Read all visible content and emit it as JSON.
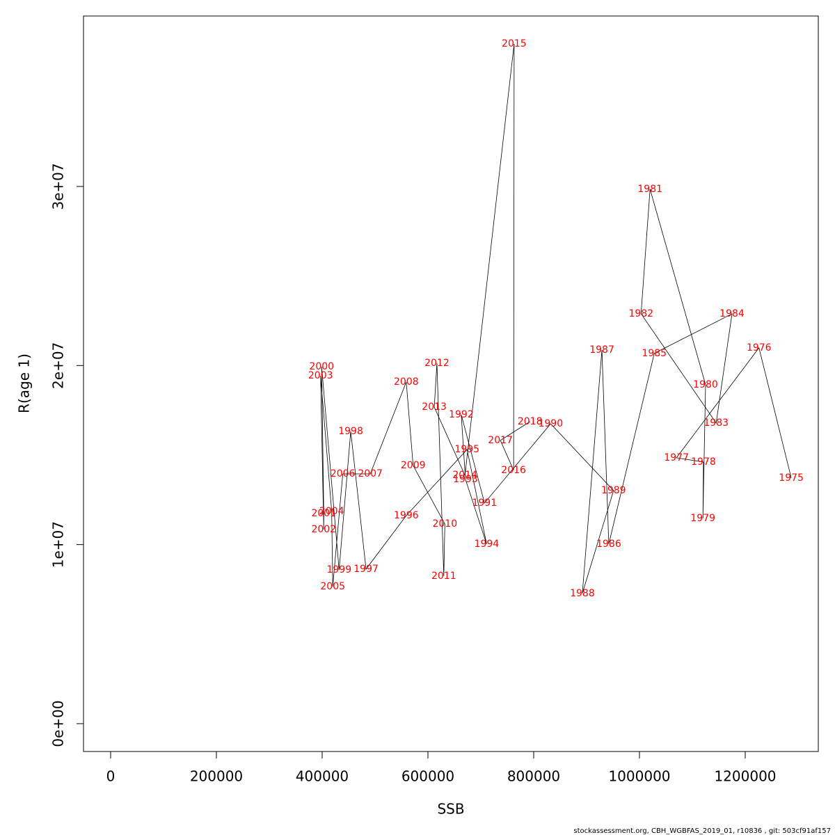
{
  "chart_data": {
    "type": "line",
    "xlabel": "SSB",
    "ylabel": "R(age 1)",
    "footer": "stockassessment.org, CBH_WGBFAS_2019_01, r10836 , git: 503cf91af157",
    "x": [
      1287000,
      1226000,
      1070000,
      1121000,
      1120000,
      1125000,
      1020000,
      1003000,
      1145000,
      1175000,
      1028000,
      942000,
      929000,
      892000,
      951000,
      832000,
      707000,
      663000,
      671000,
      711000,
      674000,
      559000,
      483000,
      454000,
      432000,
      399000,
      403000,
      403000,
      397000,
      418000,
      420000,
      439000,
      491000,
      559000,
      572000,
      632000,
      630000,
      617000,
      612000,
      670000,
      763000,
      762000,
      737000,
      793000
    ],
    "labels": [
      "1975",
      "1976",
      "1977",
      "1978",
      "1979",
      "1980",
      "1981",
      "1982",
      "1983",
      "1984",
      "1985",
      "1986",
      "1987",
      "1988",
      "1989",
      "1990",
      "1991",
      "1992",
      "1993",
      "1994",
      "1995",
      "1996",
      "1997",
      "1998",
      "1999",
      "2000",
      "2001",
      "2002",
      "2003",
      "2004",
      "2005",
      "2006",
      "2007",
      "2008",
      "2009",
      "2010",
      "2011",
      "2012",
      "2013",
      "2014",
      "2015",
      "2016",
      "2017",
      "2018"
    ],
    "label_color": "#ff0000",
    "series": [
      {
        "color": "#000000",
        "values": [
          13720000,
          20990000,
          14850000,
          14610000,
          11470000,
          18930000,
          29850000,
          22890000,
          16790000,
          22890000,
          20680000,
          10030000,
          20870000,
          7270000,
          13020000,
          16750000,
          12320000,
          17260000,
          13640000,
          10030000,
          15310000,
          11620000,
          8630000,
          16320000,
          8590000,
          19940000,
          11740000,
          10840000,
          19430000,
          11850000,
          7660000,
          13950000,
          13950000,
          19080000,
          14420000,
          11150000,
          8240000,
          20130000,
          17680000,
          13870000,
          37970000,
          14150000,
          15820000,
          16870000
        ]
      }
    ],
    "xlim": [
      -51316,
      1338158
    ],
    "ylim": [
      -1555000,
      39520000
    ],
    "xticks": [
      0,
      200000,
      400000,
      600000,
      800000,
      1000000,
      1200000
    ],
    "yticks": [
      {
        "value": 0,
        "label": "0e+00"
      },
      {
        "value": 10000000,
        "label": "1e+07"
      },
      {
        "value": 20000000,
        "label": "2e+07"
      },
      {
        "value": 30000000,
        "label": "3e+07"
      }
    ]
  }
}
